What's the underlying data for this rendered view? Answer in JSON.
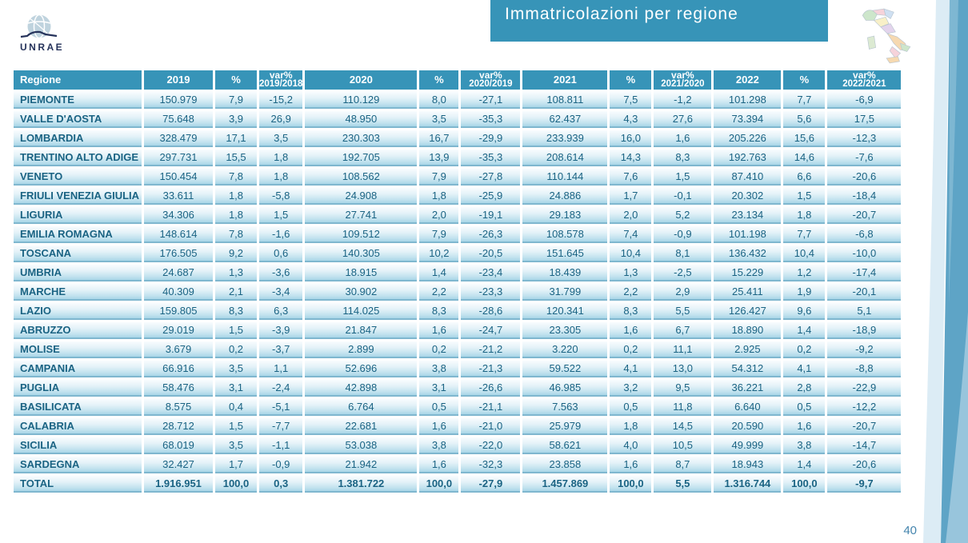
{
  "title": "Immatricolazioni per regione",
  "logo": {
    "text": "UNRAE"
  },
  "page_number": "40",
  "colors": {
    "accent": "#3794B8",
    "row-text": "#1A6383"
  },
  "table": {
    "columns": [
      {
        "label": "Regione"
      },
      {
        "label": "2019"
      },
      {
        "label": "%"
      },
      {
        "label": "var%",
        "sub": "2019/2018"
      },
      {
        "label": "2020"
      },
      {
        "label": "%"
      },
      {
        "label": "var%",
        "sub": "2020/2019"
      },
      {
        "label": "2021"
      },
      {
        "label": "%"
      },
      {
        "label": "var%",
        "sub": "2021/2020"
      },
      {
        "label": "2022"
      },
      {
        "label": "%"
      },
      {
        "label": "var%",
        "sub": "2022/2021"
      }
    ],
    "rows": [
      {
        "region": "PIEMONTE",
        "cells": [
          "150.979",
          "7,9",
          "-15,2",
          "110.129",
          "8,0",
          "-27,1",
          "108.811",
          "7,5",
          "-1,2",
          "101.298",
          "7,7",
          "-6,9"
        ]
      },
      {
        "region": "VALLE D'AOSTA",
        "cells": [
          "75.648",
          "3,9",
          "26,9",
          "48.950",
          "3,5",
          "-35,3",
          "62.437",
          "4,3",
          "27,6",
          "73.394",
          "5,6",
          "17,5"
        ]
      },
      {
        "region": "LOMBARDIA",
        "cells": [
          "328.479",
          "17,1",
          "3,5",
          "230.303",
          "16,7",
          "-29,9",
          "233.939",
          "16,0",
          "1,6",
          "205.226",
          "15,6",
          "-12,3"
        ]
      },
      {
        "region": "TRENTINO ALTO ADIGE",
        "cells": [
          "297.731",
          "15,5",
          "1,8",
          "192.705",
          "13,9",
          "-35,3",
          "208.614",
          "14,3",
          "8,3",
          "192.763",
          "14,6",
          "-7,6"
        ]
      },
      {
        "region": "VENETO",
        "cells": [
          "150.454",
          "7,8",
          "1,8",
          "108.562",
          "7,9",
          "-27,8",
          "110.144",
          "7,6",
          "1,5",
          "87.410",
          "6,6",
          "-20,6"
        ]
      },
      {
        "region": "FRIULI VENEZIA GIULIA",
        "cells": [
          "33.611",
          "1,8",
          "-5,8",
          "24.908",
          "1,8",
          "-25,9",
          "24.886",
          "1,7",
          "-0,1",
          "20.302",
          "1,5",
          "-18,4"
        ]
      },
      {
        "region": "LIGURIA",
        "cells": [
          "34.306",
          "1,8",
          "1,5",
          "27.741",
          "2,0",
          "-19,1",
          "29.183",
          "2,0",
          "5,2",
          "23.134",
          "1,8",
          "-20,7"
        ]
      },
      {
        "region": "EMILIA ROMAGNA",
        "cells": [
          "148.614",
          "7,8",
          "-1,6",
          "109.512",
          "7,9",
          "-26,3",
          "108.578",
          "7,4",
          "-0,9",
          "101.198",
          "7,7",
          "-6,8"
        ]
      },
      {
        "region": "TOSCANA",
        "cells": [
          "176.505",
          "9,2",
          "0,6",
          "140.305",
          "10,2",
          "-20,5",
          "151.645",
          "10,4",
          "8,1",
          "136.432",
          "10,4",
          "-10,0"
        ]
      },
      {
        "region": "UMBRIA",
        "cells": [
          "24.687",
          "1,3",
          "-3,6",
          "18.915",
          "1,4",
          "-23,4",
          "18.439",
          "1,3",
          "-2,5",
          "15.229",
          "1,2",
          "-17,4"
        ]
      },
      {
        "region": "MARCHE",
        "cells": [
          "40.309",
          "2,1",
          "-3,4",
          "30.902",
          "2,2",
          "-23,3",
          "31.799",
          "2,2",
          "2,9",
          "25.411",
          "1,9",
          "-20,1"
        ]
      },
      {
        "region": "LAZIO",
        "cells": [
          "159.805",
          "8,3",
          "6,3",
          "114.025",
          "8,3",
          "-28,6",
          "120.341",
          "8,3",
          "5,5",
          "126.427",
          "9,6",
          "5,1"
        ]
      },
      {
        "region": "ABRUZZO",
        "cells": [
          "29.019",
          "1,5",
          "-3,9",
          "21.847",
          "1,6",
          "-24,7",
          "23.305",
          "1,6",
          "6,7",
          "18.890",
          "1,4",
          "-18,9"
        ]
      },
      {
        "region": "MOLISE",
        "cells": [
          "3.679",
          "0,2",
          "-3,7",
          "2.899",
          "0,2",
          "-21,2",
          "3.220",
          "0,2",
          "11,1",
          "2.925",
          "0,2",
          "-9,2"
        ]
      },
      {
        "region": "CAMPANIA",
        "cells": [
          "66.916",
          "3,5",
          "1,1",
          "52.696",
          "3,8",
          "-21,3",
          "59.522",
          "4,1",
          "13,0",
          "54.312",
          "4,1",
          "-8,8"
        ]
      },
      {
        "region": "PUGLIA",
        "cells": [
          "58.476",
          "3,1",
          "-2,4",
          "42.898",
          "3,1",
          "-26,6",
          "46.985",
          "3,2",
          "9,5",
          "36.221",
          "2,8",
          "-22,9"
        ]
      },
      {
        "region": "BASILICATA",
        "cells": [
          "8.575",
          "0,4",
          "-5,1",
          "6.764",
          "0,5",
          "-21,1",
          "7.563",
          "0,5",
          "11,8",
          "6.640",
          "0,5",
          "-12,2"
        ]
      },
      {
        "region": "CALABRIA",
        "cells": [
          "28.712",
          "1,5",
          "-7,7",
          "22.681",
          "1,6",
          "-21,0",
          "25.979",
          "1,8",
          "14,5",
          "20.590",
          "1,6",
          "-20,7"
        ]
      },
      {
        "region": "SICILIA",
        "cells": [
          "68.019",
          "3,5",
          "-1,1",
          "53.038",
          "3,8",
          "-22,0",
          "58.621",
          "4,0",
          "10,5",
          "49.999",
          "3,8",
          "-14,7"
        ]
      },
      {
        "region": "SARDEGNA",
        "cells": [
          "32.427",
          "1,7",
          "-0,9",
          "21.942",
          "1,6",
          "-32,3",
          "23.858",
          "1,6",
          "8,7",
          "18.943",
          "1,4",
          "-20,6"
        ]
      },
      {
        "region": "TOTAL",
        "total": true,
        "cells": [
          "1.916.951",
          "100,0",
          "0,3",
          "1.381.722",
          "100,0",
          "-27,9",
          "1.457.869",
          "100,0",
          "5,5",
          "1.316.744",
          "100,0",
          "-9,7"
        ]
      }
    ]
  }
}
